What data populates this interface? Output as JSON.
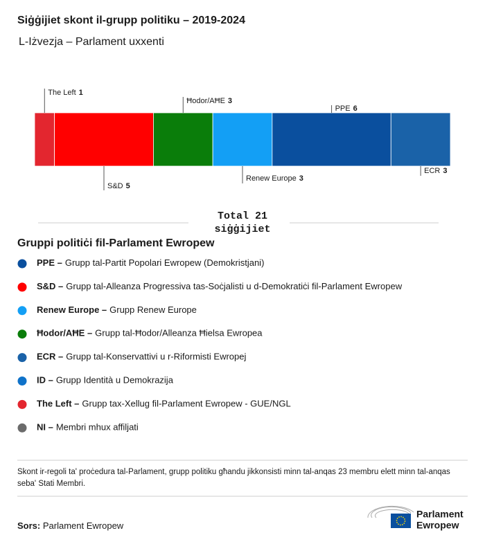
{
  "chart_data": {
    "type": "stacked-bar",
    "title": "Siġġijiet skont il-grupp politiku – 2019-2024",
    "subtitle": "L-Iżvezja – Parlament uxxenti",
    "categories": [
      null
    ],
    "series": [
      {
        "name": "The Left",
        "color": "#e3262f",
        "values": [
          1
        ]
      },
      {
        "name": "S&D",
        "color": "#ff0000",
        "values": [
          5
        ]
      },
      {
        "name": "Ħodor/AĦE",
        "color": "#0a7d0a",
        "values": [
          3
        ]
      },
      {
        "name": "Renew Europe",
        "color": "#139ff5",
        "values": [
          3
        ]
      },
      {
        "name": "PPE",
        "color": "#0a4f9e",
        "values": [
          6
        ]
      },
      {
        "name": "ECR",
        "color": "#1a62a8",
        "values": [
          3
        ]
      }
    ],
    "total_label": "Total",
    "total": 21,
    "total_unit": "siġġijiet",
    "legend_title": "Gruppi politiċi fil-Parlament Ewropew",
    "legend": [
      {
        "name": "PPE –",
        "description": "Grupp tal-Partit Popolari Ewropew (Demokristjani)",
        "color": "#0a4f9e"
      },
      {
        "name": "S&D –",
        "description": "Grupp tal-Alleanza Progressiva tas-Soċjalisti u d-Demokratiċi fil-Parlament Ewropew",
        "color": "#ff0000"
      },
      {
        "name": "Renew Europe –",
        "description": "Grupp Renew Europe",
        "color": "#139ff5"
      },
      {
        "name": "Ħodor/AĦE –",
        "description": "Grupp tal-Ħodor/Alleanza Ħielsa Ewropea",
        "color": "#0a7d0a"
      },
      {
        "name": "ECR –",
        "description": "Grupp tal-Konservattivi u r-Riformisti Ewropej",
        "color": "#1a62a8"
      },
      {
        "name": "ID –",
        "description": "Grupp Identità u Demokrazija",
        "color": "#0f72c9"
      },
      {
        "name": "The Left –",
        "description": "Grupp tax-Xellug fil-Parlament Ewropew - GUE/NGL",
        "color": "#e3262f"
      },
      {
        "name": "NI –",
        "description": "Membri mhux affiljati",
        "color": "#6b6b6b"
      }
    ],
    "note": "Skont ir-regoli ta' proċedura tal-Parlament, grupp politiku għandu jikkonsisti minn tal-anqas 23 membru elett minn tal-anqas seba' Stati Membri.",
    "source_label": "Sors:",
    "source": "Parlament Ewropew",
    "logo_text": [
      "Parlament",
      "Ewropew"
    ]
  }
}
